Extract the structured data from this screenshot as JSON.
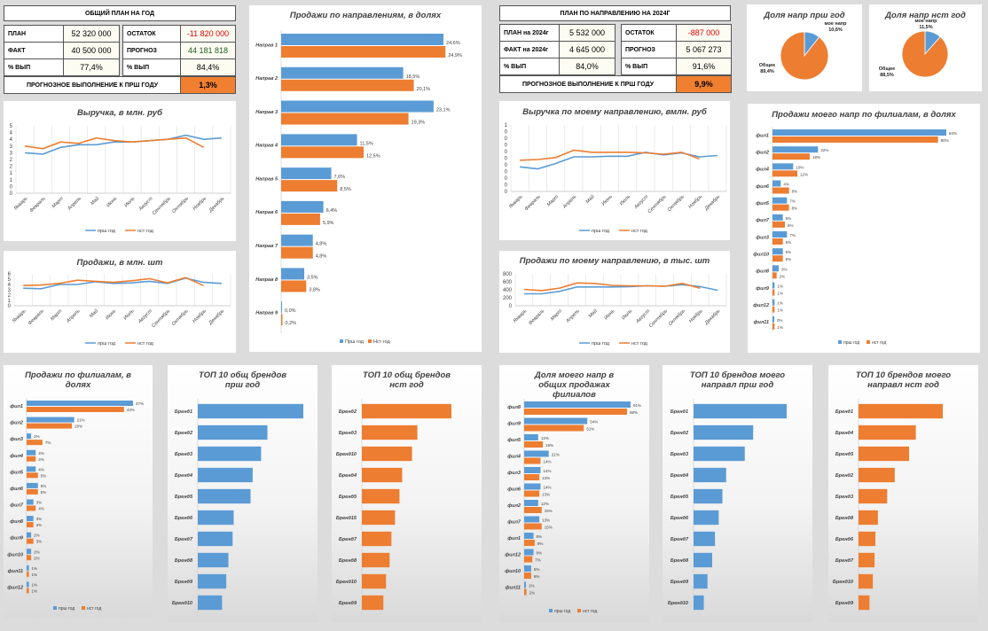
{
  "colors": {
    "prev": "#5b9bd5",
    "cur": "#ed7d31"
  },
  "kpi1": {
    "title": "ОБЩИЙ ПЛАН НА  ГОД",
    "plan_label": "ПЛАН",
    "plan_value": "52 320 000",
    "fact_label": "ФАКТ",
    "fact_value": "40 500 000",
    "pct_label": "% ВЫП",
    "pct_value": "77,4%",
    "rest_label": "ОСТАТОК",
    "rest_value": "-11 820 000",
    "forecast_label": "ПРОГНОЗ",
    "forecast_value": "44 181 818",
    "pct2_label": "% ВЫП",
    "pct2_value": "84,4%",
    "footer_label": "ПРОГНОЗНОЕ ВЫПОЛНЕНИЕ К ПРШ ГОДУ",
    "footer_value": "1,3%"
  },
  "kpi2": {
    "title": "ПЛАН ПО НАПРАВЛЕНИЮ  НА 2024Г",
    "plan_label": "ПЛАН на 2024г",
    "plan_value": "5 532 000",
    "fact_label": "ФАКТ на 2024г",
    "fact_value": "4 645 000",
    "pct_label": "% ВЫП",
    "pct_value": "84,0%",
    "rest_label": "ОСТАТОК",
    "rest_value": "-887 000",
    "forecast_label": "ПРОГНОЗ",
    "forecast_value": "5 067 273",
    "pct2_label": "% ВЫП",
    "pct2_value": "91,6%",
    "footer_label": "ПРОГНОЗНОЕ ВЫПОЛНЕНИЕ К ПРШ ГОДУ",
    "footer_value": "9,9%"
  },
  "legend": {
    "prev": "прш год",
    "cur": "нст год",
    "prev_alt": "Прш год",
    "cur_alt": "Нст год"
  },
  "months": [
    "Январь",
    "Февраль",
    "Март",
    "Апрель",
    "Май",
    "Июнь",
    "Июль",
    "Август",
    "Сентябрь",
    "Октябрь",
    "Ноябрь",
    "Декабрь"
  ],
  "chart_data": [
    {
      "id": "revenue",
      "type": "line",
      "title": "Выручка, в млн. руб",
      "categories": [
        "Январь",
        "Февраль",
        "Март",
        "Апрель",
        "Май",
        "Июнь",
        "Июль",
        "Август",
        "Сентябрь",
        "Октябрь",
        "Ноябрь",
        "Декабрь"
      ],
      "y_ticks": [
        "5",
        "4",
        "4",
        "3",
        "3",
        "2",
        "2",
        "1",
        "1",
        "0",
        "0"
      ],
      "series": [
        {
          "name": "прш год",
          "values": [
            3.0,
            2.9,
            3.4,
            3.6,
            3.6,
            3.8,
            3.8,
            3.9,
            4.0,
            4.3,
            4.0,
            4.1
          ]
        },
        {
          "name": "нст год",
          "values": [
            3.5,
            3.3,
            3.8,
            3.7,
            4.1,
            3.9,
            3.8,
            3.9,
            4.0,
            4.1,
            3.4,
            null
          ]
        }
      ]
    },
    {
      "id": "units",
      "type": "line",
      "title": "Продажи, в млн. шт",
      "categories": [
        "Январь",
        "Февраль",
        "Март",
        "Апрель",
        "Май",
        "Июнь",
        "Июль",
        "Август",
        "Сентябрь",
        "Октябрь",
        "Ноябрь",
        "Декабрь"
      ],
      "y_ticks": [
        "6",
        "5",
        "4",
        "3",
        "2",
        "1",
        "0"
      ],
      "series": [
        {
          "name": "прш год",
          "values": [
            3.3,
            3.2,
            4.0,
            4.0,
            4.5,
            4.2,
            4.3,
            4.6,
            4.2,
            5.2,
            4.4,
            4.2
          ]
        },
        {
          "name": "нст год",
          "values": [
            3.8,
            3.9,
            4.2,
            4.8,
            4.6,
            4.4,
            4.7,
            5.1,
            4.3,
            5.3,
            3.8,
            null
          ]
        }
      ]
    },
    {
      "id": "by_direction",
      "type": "bar",
      "title": "Продажи по направлениям, в долях",
      "categories": [
        "Направ 1",
        "Направ 2",
        "Направ 3",
        "Направ 4",
        "Направ 5",
        "Направ 6",
        "Направ 7",
        "Направ 8",
        "Направ 9"
      ],
      "series": [
        {
          "name": "Прш год",
          "values": [
            24.6,
            18.5,
            23.1,
            11.5,
            7.6,
            6.4,
            4.8,
            3.5,
            0.0
          ],
          "labels": [
            "24,6%",
            "18,5%",
            "23,1%",
            "11,5%",
            "7,6%",
            "6,4%",
            "4,8%",
            "3,5%",
            "0,0%"
          ]
        },
        {
          "name": "Нст год",
          "values": [
            24.9,
            20.1,
            19.3,
            12.5,
            8.5,
            5.9,
            4.8,
            3.8,
            0.2
          ],
          "labels": [
            "24,9%",
            "20,1%",
            "19,3%",
            "12,5%",
            "8,5%",
            "5,9%",
            "4,8%",
            "3,8%",
            "0,2%"
          ]
        }
      ]
    },
    {
      "id": "share_prev",
      "type": "pie",
      "title": "Доля напр прш год",
      "slices": [
        {
          "name": "мое напр",
          "value": 10.6,
          "label": "10,6%"
        },
        {
          "name": "Общее",
          "value": 89.4,
          "label": "89,4%"
        }
      ]
    },
    {
      "id": "share_cur",
      "type": "pie",
      "title": "Доля напр нст год",
      "slices": [
        {
          "name": "мое напр",
          "value": 11.5,
          "label": "11,5%"
        },
        {
          "name": "Общее",
          "value": 88.5,
          "label": "88,5%"
        }
      ]
    },
    {
      "id": "my_revenue",
      "type": "line",
      "title": "Выручка по моему направлению, вмлн.  руб",
      "categories": [
        "Январь",
        "Февраль",
        "Март",
        "Апрель",
        "Май",
        "Июнь",
        "Июль",
        "Август",
        "Сентябрь",
        "Октябрь",
        "Ноябрь",
        "Декабрь"
      ],
      "y_ticks": [
        "1",
        "0",
        "0",
        "0",
        "0",
        "0",
        "0",
        "0",
        "0",
        "0",
        "0"
      ],
      "series": [
        {
          "name": "прш год",
          "values": [
            0.37,
            0.34,
            0.42,
            0.52,
            0.52,
            0.53,
            0.53,
            0.59,
            0.55,
            0.58,
            0.52,
            0.54
          ]
        },
        {
          "name": "нст год",
          "values": [
            0.47,
            0.48,
            0.51,
            0.62,
            0.59,
            0.59,
            0.59,
            0.58,
            0.56,
            0.59,
            0.49,
            null
          ]
        }
      ]
    },
    {
      "id": "my_units",
      "type": "line",
      "title": "Продажи по моему направлению, в тыс. шт",
      "categories": [
        "Январь",
        "Февраль",
        "Март",
        "Апрель",
        "Май",
        "Июнь",
        "Июль",
        "Август",
        "Сентябрь",
        "Октябрь",
        "Ноябрь",
        "Декабрь"
      ],
      "y_ticks": [
        "800",
        "600",
        "400",
        "200",
        "0"
      ],
      "series": [
        {
          "name": "прш год",
          "values": [
            300,
            300,
            360,
            470,
            470,
            470,
            480,
            500,
            490,
            530,
            480,
            390
          ]
        },
        {
          "name": "нст год",
          "values": [
            410,
            380,
            440,
            570,
            560,
            510,
            500,
            500,
            490,
            560,
            440,
            null
          ]
        }
      ]
    },
    {
      "id": "my_by_branch",
      "type": "bar",
      "title": "Продажи моего напр по филиалам, в долях",
      "categories": [
        "фил1",
        "фил2",
        "фил4",
        "фил6",
        "фил5",
        "фил7",
        "фил3",
        "фил10",
        "фил8",
        "фил9",
        "фил12",
        "фил11"
      ],
      "series": [
        {
          "name": "прш год",
          "values": [
            84,
            22,
            10,
            4,
            7,
            5,
            7,
            5,
            3,
            1,
            1,
            0
          ],
          "labels": [
            "84%",
            "22%",
            "10%",
            "4%",
            "7%",
            "5%",
            "7%",
            "5%",
            "3%",
            "1%",
            "1%",
            "0%"
          ]
        },
        {
          "name": "нст год",
          "values": [
            80,
            18,
            12,
            8,
            8,
            6,
            5,
            5,
            2,
            1,
            1,
            1
          ],
          "labels": [
            "80%",
            "18%",
            "12%",
            "8%",
            "8%",
            "6%",
            "5%",
            "5%",
            "2%",
            "1%",
            "1%",
            "1%"
          ]
        }
      ]
    },
    {
      "id": "branches",
      "type": "bar",
      "title": "Продажи по филиалам, в долях",
      "categories": [
        "фил1",
        "фил2",
        "фил3",
        "фил4",
        "фил5",
        "фил6",
        "фил7",
        "фил8",
        "фил9",
        "фил10",
        "фил11",
        "фил12"
      ],
      "series": [
        {
          "name": "прш год",
          "values": [
            47,
            21,
            2,
            4,
            4,
            5,
            3,
            3,
            2,
            2,
            1,
            1
          ],
          "labels": [
            "47%",
            "21%",
            "2%",
            "4%",
            "4%",
            "5%",
            "3%",
            "3%",
            "2%",
            "2%",
            "1%",
            "1%"
          ]
        },
        {
          "name": "нст год",
          "values": [
            43,
            20,
            7,
            4,
            5,
            5,
            4,
            3,
            3,
            2,
            1,
            1
          ],
          "labels": [
            "43%",
            "20%",
            "7%",
            "4%",
            "5%",
            "5%",
            "4%",
            "3%",
            "3%",
            "2%",
            "1%",
            "1%"
          ]
        }
      ]
    },
    {
      "id": "top10_prev",
      "type": "bar",
      "title": "ТОП 10 общ брендов прш год",
      "categories": [
        "Бренд1",
        "Бренд2",
        "Бренд3",
        "Бренд4",
        "Бренд5",
        "Бренд6",
        "Бренд7",
        "Бренд8",
        "Бренд9",
        "Бренд10"
      ],
      "series": [
        {
          "name": "прш год",
          "values": [
            100,
            66,
            60,
            52,
            50,
            34,
            33,
            29,
            27,
            23
          ]
        }
      ]
    },
    {
      "id": "top10_cur",
      "type": "bar",
      "title": "ТОП 10 общ брендов нст год",
      "categories": [
        "Бренд2",
        "Бренд3",
        "Бренд10",
        "Бренд4",
        "Бренд5",
        "Бренд15",
        "Бренд7",
        "Бренд8",
        "Бренд10",
        "Бренд9"
      ],
      "series": [
        {
          "name": "нст год",
          "values": [
            100,
            62,
            56,
            45,
            42,
            37,
            33,
            31,
            27,
            24
          ]
        }
      ]
    },
    {
      "id": "share_in_branch",
      "type": "bar",
      "title": "Доля моего напр в общих продажах филиалов",
      "categories": [
        "фил8",
        "фил9",
        "фил5",
        "фил4",
        "фил3",
        "фил6",
        "фил2",
        "фил7",
        "фил1",
        "фил12",
        "фил10",
        "фил11"
      ],
      "series": [
        {
          "name": "прш год",
          "values": [
            91,
            54,
            12,
            21,
            14,
            14,
            12,
            13,
            8,
            8,
            6,
            1
          ],
          "labels": [
            "91%",
            "54%",
            "12%",
            "21%",
            "14%",
            "14%",
            "12%",
            "13%",
            "8%",
            "8%",
            "6%",
            "1%"
          ]
        },
        {
          "name": "нст год",
          "values": [
            88,
            51,
            16,
            14,
            13,
            13,
            15,
            15,
            9,
            7,
            6,
            2
          ],
          "labels": [
            "88%",
            "51%",
            "16%",
            "14%",
            "13%",
            "13%",
            "15%",
            "15%",
            "9%",
            "7%",
            "6%",
            "2%"
          ]
        }
      ]
    },
    {
      "id": "top10_my_prev",
      "type": "bar",
      "title": "ТОП 10 брендов моего направл прш год",
      "categories": [
        "Бренд1",
        "Бренд2",
        "Бренд3",
        "Бренд4",
        "Бренд5",
        "Бренд6",
        "Бренд7",
        "Бренд8",
        "Бренд9",
        "Бренд10"
      ],
      "series": [
        {
          "name": "прш год",
          "values": [
            100,
            64,
            55,
            35,
            31,
            27,
            23,
            20,
            15,
            11
          ]
        }
      ]
    },
    {
      "id": "top10_my_cur",
      "type": "bar",
      "title": "ТОП 10 брендов моего направл нст год",
      "categories": [
        "Бренд1",
        "Бренд4",
        "Бренд5",
        "Бренд2",
        "Бренд3",
        "Бренд8",
        "Бренд6",
        "Бренд7",
        "Бренд10",
        "Бренд9"
      ],
      "series": [
        {
          "name": "нст год",
          "values": [
            100,
            68,
            60,
            43,
            34,
            23,
            20,
            19,
            17,
            13
          ]
        }
      ]
    }
  ]
}
